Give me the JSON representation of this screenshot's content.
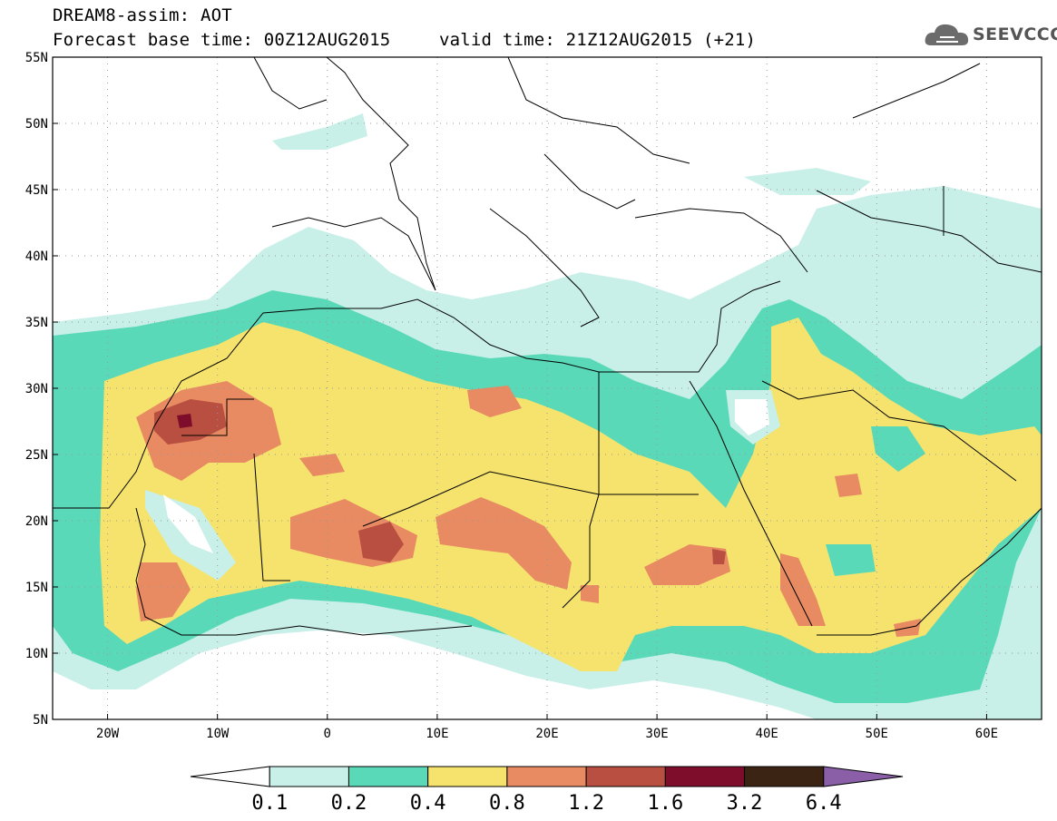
{
  "header": {
    "line1": "DREAM8-assim: AOT",
    "line2": "Forecast base time: 00Z12AUG2015",
    "valid": "valid time: 21Z12AUG2015 (+21)"
  },
  "logo": {
    "text": "SEEVCCC",
    "icon": "cloud-icon"
  },
  "map": {
    "lat_labels": [
      "55N",
      "50N",
      "45N",
      "40N",
      "35N",
      "30N",
      "25N",
      "20N",
      "15N",
      "10N",
      "5N"
    ],
    "lon_labels": [
      "20W",
      "10W",
      "0",
      "10E",
      "20E",
      "30E",
      "40E",
      "50E",
      "60E"
    ],
    "lat_range": [
      5,
      55
    ],
    "lon_range": [
      -25,
      65
    ],
    "grid": "dotted"
  },
  "legend": {
    "labels": [
      "0.1",
      "0.2",
      "0.4",
      "0.8",
      "1.2",
      "1.6",
      "3.2",
      "6.4"
    ],
    "colors": [
      "#ffffff",
      "#c8f0e8",
      "#5ad9b8",
      "#f5e36e",
      "#e88a62",
      "#b84f40",
      "#7d0d2a",
      "#3b2414",
      "#8a5fa8"
    ]
  }
}
